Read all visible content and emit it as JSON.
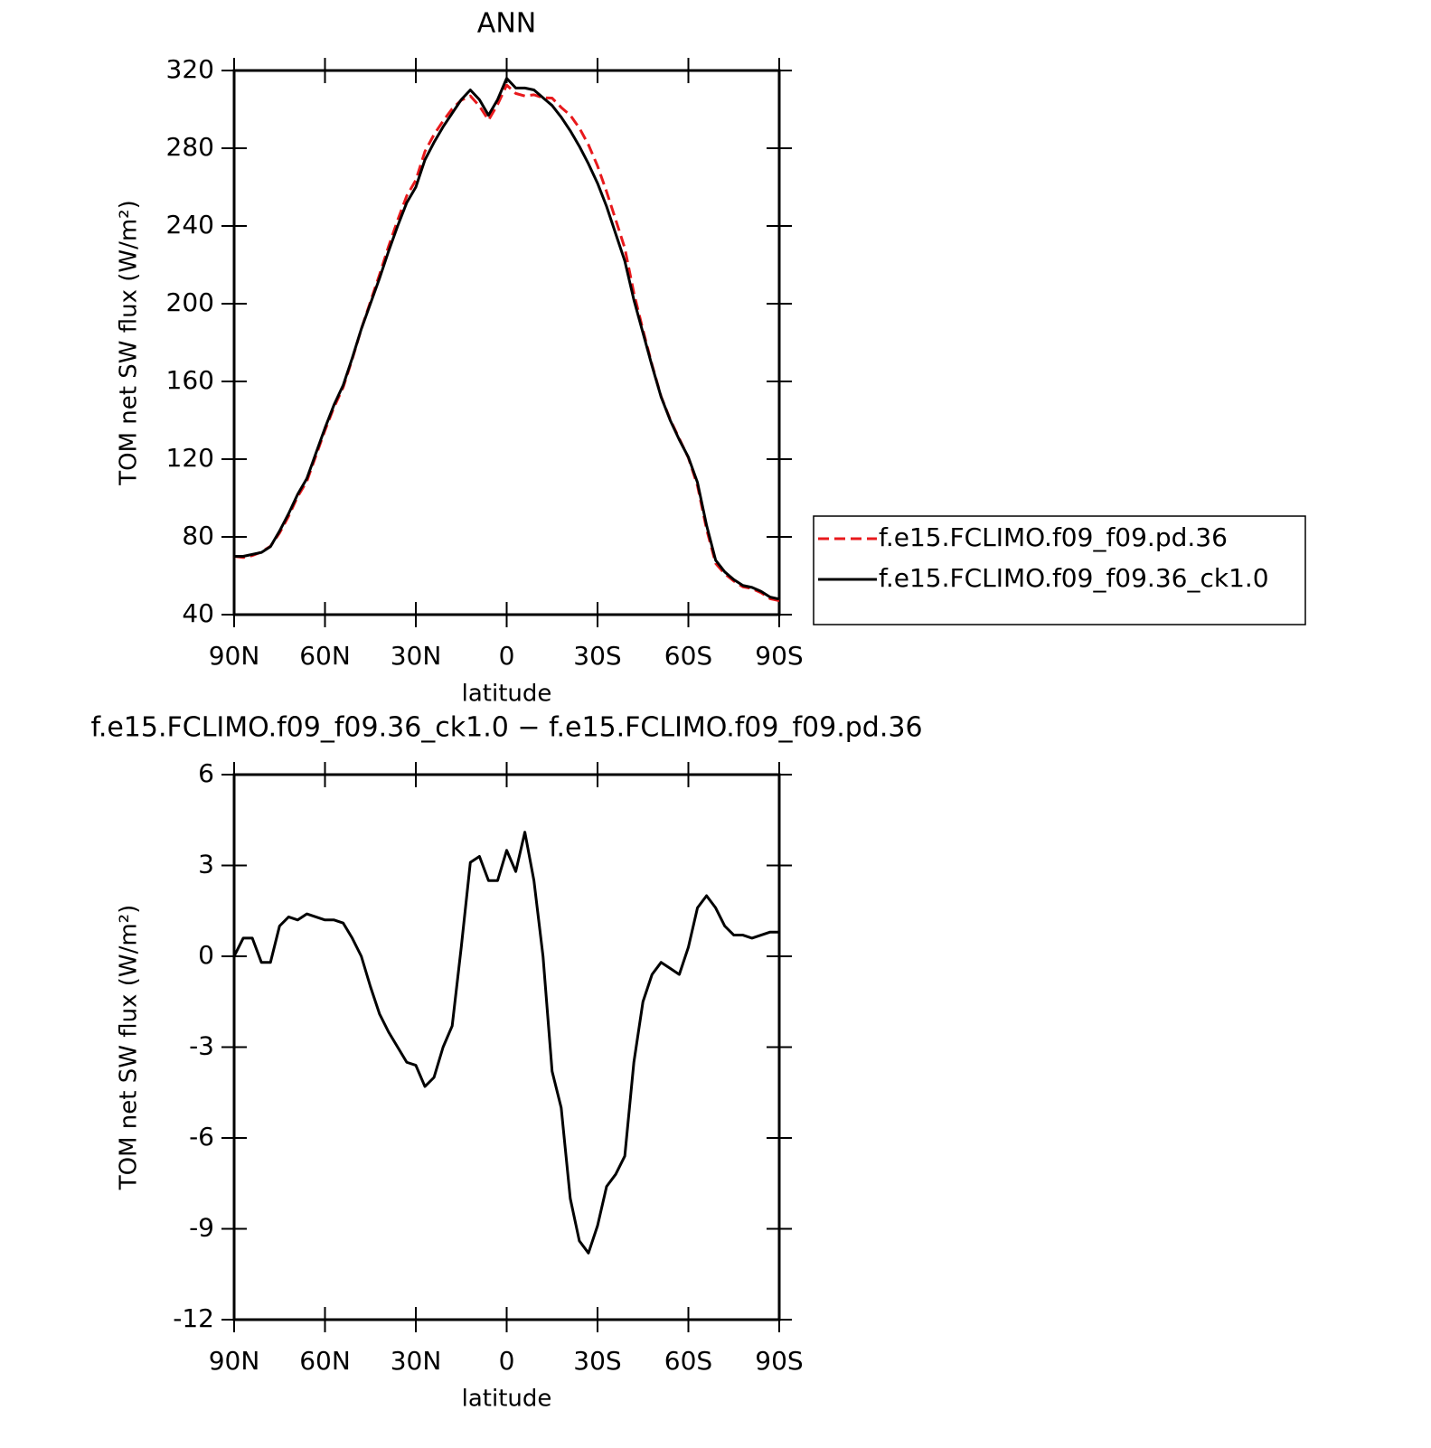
{
  "chart_data": [
    {
      "type": "line",
      "title": "ANN",
      "x_label": "latitude",
      "y_label": "TOM net SW flux (W/m²)",
      "x": [
        90,
        87,
        84,
        81,
        78,
        75,
        72,
        69,
        66,
        63,
        60,
        57,
        54,
        51,
        48,
        45,
        42,
        39,
        36,
        33,
        30,
        27,
        24,
        21,
        18,
        15,
        12,
        9,
        6,
        3,
        0,
        -3,
        -6,
        -9,
        -12,
        -15,
        -18,
        -21,
        -24,
        -27,
        -30,
        -33,
        -36,
        -39,
        -42,
        -45,
        -48,
        -51,
        -54,
        -57,
        -60,
        -63,
        -66,
        -69,
        -72,
        -75,
        -78,
        -81,
        -84,
        -87,
        -90
      ],
      "xlim": [
        90,
        -90
      ],
      "xticks": [
        {
          "value": 90,
          "label": "90N"
        },
        {
          "value": 60,
          "label": "60N"
        },
        {
          "value": 30,
          "label": "30N"
        },
        0,
        {
          "value": -30,
          "label": "30S"
        },
        {
          "value": -60,
          "label": "60S"
        },
        {
          "value": -90,
          "label": "90S"
        }
      ],
      "ylim": [
        40,
        320
      ],
      "yticks": [
        40,
        80,
        120,
        160,
        200,
        240,
        280,
        320
      ],
      "legend": "right",
      "series": [
        {
          "name": "f.e15.FCLIMO.f09_f09.pd.36",
          "color": "#e8191c",
          "line_style": "dashed",
          "values": [
            70,
            69.4,
            70.4,
            72.2,
            75.2,
            82,
            90.7,
            100.8,
            108.6,
            121.7,
            134.8,
            146.8,
            156.9,
            171.4,
            187,
            201,
            214.9,
            229.5,
            243,
            255.5,
            263.6,
            278.3,
            287,
            294,
            300.3,
            304.7,
            306.9,
            301.7,
            294.5,
            302.5,
            312.5,
            308.2,
            306.9,
            307.5,
            306,
            305.8,
            301,
            297,
            290.4,
            281.8,
            270.9,
            257.6,
            243.2,
            228.6,
            205.5,
            186.5,
            168.6,
            152.2,
            140.4,
            130.6,
            120.7,
            106.4,
            84,
            66.4,
            61,
            57.3,
            54.3,
            53.4,
            51.3,
            48.2,
            47.2
          ]
        },
        {
          "name": "f.e15.FCLIMO.f09_f09.36_ck1.0",
          "color": "#000000",
          "line_style": "solid",
          "values": [
            70,
            70,
            71,
            72,
            75,
            83,
            92,
            102,
            110,
            123,
            136,
            148,
            158,
            172,
            187,
            200,
            213,
            227,
            240,
            252,
            260,
            274,
            283,
            291,
            298,
            305,
            310,
            305,
            297,
            305,
            316,
            311,
            311,
            310,
            306,
            302,
            296,
            289,
            281,
            272,
            262,
            250,
            236,
            222,
            202,
            185,
            168,
            152,
            140,
            130,
            121,
            108,
            86,
            68,
            62,
            58,
            55,
            54,
            52,
            49,
            48
          ]
        }
      ]
    },
    {
      "type": "line",
      "title": "f.e15.FCLIMO.f09_f09.36_ck1.0 − f.e15.FCLIMO.f09_f09.pd.36",
      "x_label": "latitude",
      "y_label": "TOM net SW flux (W/m²)",
      "x": [
        90,
        87,
        84,
        81,
        78,
        75,
        72,
        69,
        66,
        63,
        60,
        57,
        54,
        51,
        48,
        45,
        42,
        39,
        36,
        33,
        30,
        27,
        24,
        21,
        18,
        15,
        12,
        9,
        6,
        3,
        0,
        -3,
        -6,
        -9,
        -12,
        -15,
        -18,
        -21,
        -24,
        -27,
        -30,
        -33,
        -36,
        -39,
        -42,
        -45,
        -48,
        -51,
        -54,
        -57,
        -60,
        -63,
        -66,
        -69,
        -72,
        -75,
        -78,
        -81,
        -84,
        -87,
        -90
      ],
      "xlim": [
        90,
        -90
      ],
      "xticks": [
        {
          "value": 90,
          "label": "90N"
        },
        {
          "value": 60,
          "label": "60N"
        },
        {
          "value": 30,
          "label": "30N"
        },
        0,
        {
          "value": -30,
          "label": "30S"
        },
        {
          "value": -60,
          "label": "60S"
        },
        {
          "value": -90,
          "label": "90S"
        }
      ],
      "ylim": [
        -12,
        6
      ],
      "yticks": [
        -12,
        -9,
        -6,
        -3,
        0,
        3,
        6
      ],
      "series": [
        {
          "color": "#000000",
          "line_style": "solid",
          "values": [
            0,
            0.6,
            0.6,
            -0.2,
            -0.2,
            1.0,
            1.3,
            1.2,
            1.4,
            1.3,
            1.2,
            1.2,
            1.1,
            0.6,
            0,
            -1.0,
            -1.9,
            -2.5,
            -3.0,
            -3.5,
            -3.6,
            -4.3,
            -4.0,
            -3.0,
            -2.3,
            0.3,
            3.1,
            3.3,
            2.5,
            2.5,
            3.5,
            2.8,
            4.1,
            2.5,
            0.0,
            -3.8,
            -5.0,
            -8.0,
            -9.4,
            -9.8,
            -8.9,
            -7.6,
            -7.2,
            -6.6,
            -3.5,
            -1.5,
            -0.6,
            -0.2,
            -0.4,
            -0.6,
            0.3,
            1.6,
            2.0,
            1.6,
            1.0,
            0.7,
            0.7,
            0.6,
            0.7,
            0.8,
            0.8
          ]
        }
      ]
    }
  ]
}
